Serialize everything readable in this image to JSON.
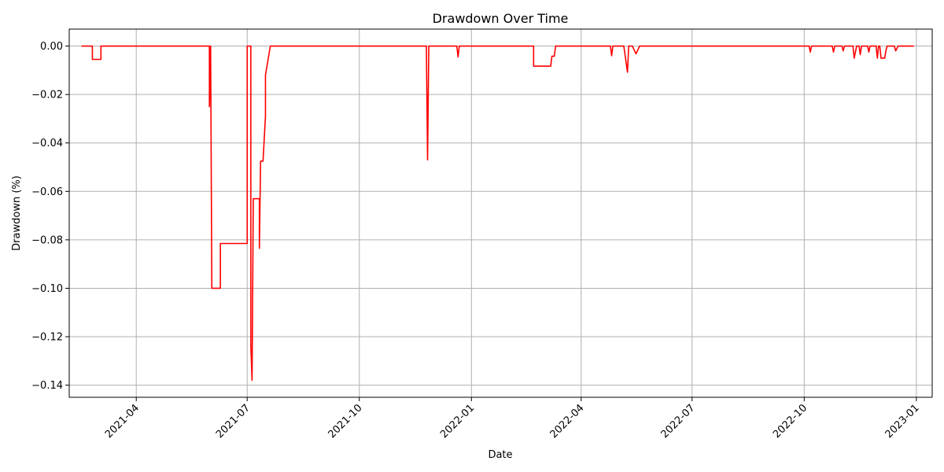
{
  "chart_data": {
    "type": "line",
    "title": "Drawdown Over Time",
    "xlabel": "Date",
    "ylabel": "Drawdown (%)",
    "grid": true,
    "x_axis_type": "date",
    "xlim": [
      "2021-02-05",
      "2023-01-14"
    ],
    "ylim": [
      -0.145,
      0.007
    ],
    "x_ticks": [
      "2021-04",
      "2021-07",
      "2021-10",
      "2022-01",
      "2022-04",
      "2022-07",
      "2022-10",
      "2023-01"
    ],
    "x_tick_dates": [
      "2021-04-01",
      "2021-07-01",
      "2021-10-01",
      "2022-01-01",
      "2022-04-01",
      "2022-07-01",
      "2022-10-01",
      "2023-01-01"
    ],
    "y_ticks": [
      0.0,
      -0.02,
      -0.04,
      -0.06,
      -0.08,
      -0.1,
      -0.12,
      -0.14
    ],
    "y_tick_labels": [
      "0.00",
      "−0.02",
      "−0.04",
      "−0.06",
      "−0.08",
      "−0.10",
      "−0.12",
      "−0.14"
    ],
    "series": [
      {
        "color": "#ff0000",
        "points": [
          [
            "2021-02-15",
            0.0
          ],
          [
            "2021-02-24",
            0.0
          ],
          [
            "2021-02-24",
            -0.0055
          ],
          [
            "2021-03-03",
            -0.0055
          ],
          [
            "2021-03-03",
            0.0
          ],
          [
            "2021-05-31",
            0.0
          ],
          [
            "2021-05-31",
            -0.025
          ],
          [
            "2021-06-01",
            0.0
          ],
          [
            "2021-06-02",
            -0.1
          ],
          [
            "2021-06-09",
            -0.1
          ],
          [
            "2021-06-09",
            -0.0815
          ],
          [
            "2021-07-01",
            -0.0815
          ],
          [
            "2021-07-01",
            0.0
          ],
          [
            "2021-07-04",
            0.0
          ],
          [
            "2021-07-04",
            -0.124
          ],
          [
            "2021-07-05",
            -0.138
          ],
          [
            "2021-07-06",
            -0.063
          ],
          [
            "2021-07-11",
            -0.063
          ],
          [
            "2021-07-11",
            -0.0835
          ],
          [
            "2021-07-12",
            -0.0475
          ],
          [
            "2021-07-14",
            -0.0475
          ],
          [
            "2021-07-16",
            -0.029
          ],
          [
            "2021-07-16",
            -0.012
          ],
          [
            "2021-07-20",
            0.0
          ],
          [
            "2021-11-25",
            0.0
          ],
          [
            "2021-11-26",
            -0.047
          ],
          [
            "2021-11-27",
            0.0
          ],
          [
            "2021-12-20",
            0.0
          ],
          [
            "2021-12-21",
            -0.0045
          ],
          [
            "2021-12-22",
            0.0
          ],
          [
            "2022-02-21",
            0.0
          ],
          [
            "2022-02-21",
            -0.0083
          ],
          [
            "2022-03-07",
            -0.0083
          ],
          [
            "2022-03-08",
            -0.0042
          ],
          [
            "2022-03-10",
            -0.0042
          ],
          [
            "2022-03-11",
            0.0
          ],
          [
            "2022-04-25",
            0.0
          ],
          [
            "2022-04-26",
            -0.004
          ],
          [
            "2022-04-27",
            0.0
          ],
          [
            "2022-05-06",
            0.0
          ],
          [
            "2022-05-09",
            -0.0108
          ],
          [
            "2022-05-10",
            0.0
          ],
          [
            "2022-05-13",
            0.0
          ],
          [
            "2022-05-16",
            -0.0032
          ],
          [
            "2022-05-19",
            0.0
          ],
          [
            "2022-10-05",
            0.0
          ],
          [
            "2022-10-06",
            -0.0025
          ],
          [
            "2022-10-07",
            0.0
          ],
          [
            "2022-10-24",
            0.0
          ],
          [
            "2022-10-25",
            -0.0025
          ],
          [
            "2022-10-26",
            0.0
          ],
          [
            "2022-11-01",
            0.0
          ],
          [
            "2022-11-02",
            -0.002
          ],
          [
            "2022-11-03",
            0.0
          ],
          [
            "2022-11-10",
            0.0
          ],
          [
            "2022-11-11",
            -0.005
          ],
          [
            "2022-11-13",
            0.0
          ],
          [
            "2022-11-15",
            0.0
          ],
          [
            "2022-11-16",
            -0.0035
          ],
          [
            "2022-11-17",
            0.0
          ],
          [
            "2022-11-22",
            0.0
          ],
          [
            "2022-11-23",
            -0.0025
          ],
          [
            "2022-11-24",
            0.0
          ],
          [
            "2022-11-29",
            0.0
          ],
          [
            "2022-11-30",
            -0.005
          ],
          [
            "2022-12-01",
            0.0
          ],
          [
            "2022-12-02",
            0.0
          ],
          [
            "2022-12-03",
            -0.005
          ],
          [
            "2022-12-06",
            -0.005
          ],
          [
            "2022-12-07",
            -0.002
          ],
          [
            "2022-12-08",
            0.0
          ],
          [
            "2022-12-14",
            0.0
          ],
          [
            "2022-12-15",
            -0.002
          ],
          [
            "2022-12-17",
            0.0
          ],
          [
            "2022-12-30",
            0.0
          ]
        ]
      }
    ]
  }
}
